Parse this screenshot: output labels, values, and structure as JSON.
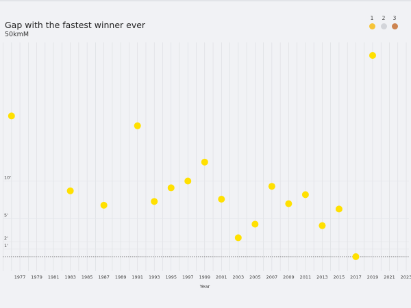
{
  "chart_data": {
    "type": "scatter",
    "title": "Gap with the fastest winner ever",
    "subtitle": "50kmM",
    "xlabel": "Year",
    "ylabel": "",
    "x_ticks": [
      "1977",
      "1979",
      "1981",
      "1983",
      "1985",
      "1987",
      "1989",
      "1991",
      "1993",
      "1995",
      "1997",
      "1999",
      "2001",
      "2003",
      "2005",
      "2007",
      "2009",
      "2011",
      "2013",
      "2015",
      "2017",
      "2019",
      "2021",
      "2023"
    ],
    "y_ticks": [
      {
        "value": 1,
        "label": "1'"
      },
      {
        "value": 2,
        "label": "2'"
      },
      {
        "value": 5,
        "label": "5'"
      },
      {
        "value": 10,
        "label": "10'"
      }
    ],
    "xlim": [
      1975,
      2023
    ],
    "ylim": [
      0,
      29
    ],
    "grid": true,
    "baseline_dotted": true,
    "legend": {
      "placement": "top-right",
      "entries": [
        {
          "label": "1",
          "color": "#f6c437"
        },
        {
          "label": "2",
          "color": "#d3d5da"
        },
        {
          "label": "3",
          "color": "#cd8450"
        }
      ]
    },
    "series": [
      {
        "color": "#ffe000",
        "points": [
          {
            "x": 1976,
            "y": 18.6
          },
          {
            "x": 1983,
            "y": 8.7
          },
          {
            "x": 1987,
            "y": 6.8
          },
          {
            "x": 1991,
            "y": 17.3
          },
          {
            "x": 1993,
            "y": 7.3
          },
          {
            "x": 1995,
            "y": 9.1
          },
          {
            "x": 1997,
            "y": 10.0
          },
          {
            "x": 1999,
            "y": 12.5
          },
          {
            "x": 2001,
            "y": 7.6
          },
          {
            "x": 2003,
            "y": 2.5
          },
          {
            "x": 2005,
            "y": 4.3
          },
          {
            "x": 2007,
            "y": 9.3
          },
          {
            "x": 2009,
            "y": 7.0
          },
          {
            "x": 2011,
            "y": 8.2
          },
          {
            "x": 2013,
            "y": 4.1
          },
          {
            "x": 2015,
            "y": 6.3
          },
          {
            "x": 2017,
            "y": 0.0
          },
          {
            "x": 2019,
            "y": 26.6
          }
        ]
      }
    ]
  }
}
